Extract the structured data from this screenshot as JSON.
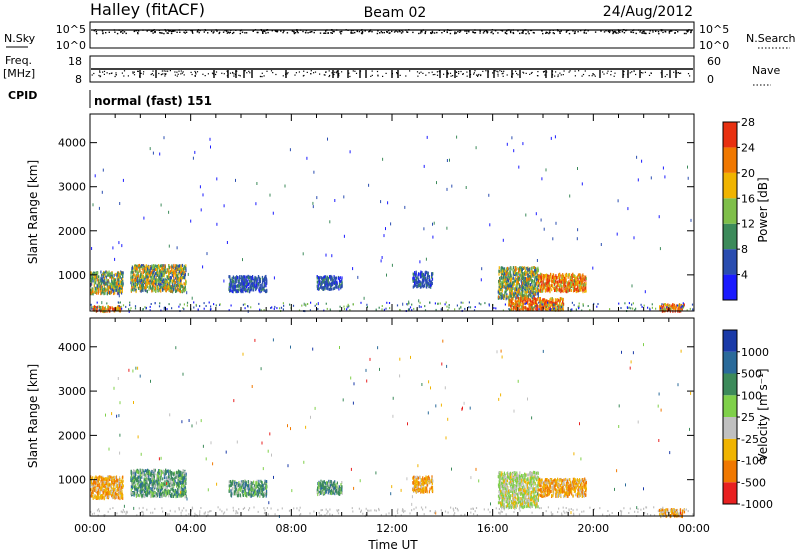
{
  "header": {
    "station": "Halley (fitACF)",
    "beam": "Beam 02",
    "date": "24/Aug/2012"
  },
  "top_panels": {
    "nsky": {
      "label": "N.Sky",
      "right_label": "N.Search",
      "tick_labels": [
        "10^5",
        "10^0"
      ],
      "right_tick_labels": [
        "10^5",
        "10^0"
      ]
    },
    "freq": {
      "label_line1": "Freq.",
      "label_line2": "[MHz]",
      "right_label": "Nave",
      "tick_labels": [
        "18",
        "8"
      ],
      "right_tick_labels": [
        "60",
        "0"
      ]
    },
    "cpid": {
      "label": "CPID",
      "text": "normal (fast) 151"
    }
  },
  "chart_data": [
    {
      "type": "heatmap",
      "title": "",
      "xlabel": "Time UT",
      "ylabel": "Slant Range [km]",
      "xlim": [
        0,
        24
      ],
      "ylim": [
        180,
        4650
      ],
      "x_tick_labels": [
        "00:00",
        "04:00",
        "08:00",
        "12:00",
        "16:00",
        "20:00",
        "00:00"
      ],
      "y_tick_labels": [
        "1000",
        "2000",
        "3000",
        "4000"
      ],
      "y_ticks": [
        1000,
        2000,
        3000,
        4000
      ],
      "colorbar": {
        "label": "Power [dB]",
        "tick_labels": [
          "4",
          "8",
          "12",
          "16",
          "20",
          "24",
          "28"
        ],
        "colors": [
          "#1a1aff",
          "#2a4db0",
          "#3c8a5a",
          "#7fbf4a",
          "#f0b400",
          "#f07800",
          "#e83010"
        ]
      },
      "regions": [
        {
          "t0": 0.0,
          "t1": 1.3,
          "r0": 600,
          "r1": 1100,
          "value": "moderate"
        },
        {
          "t0": 1.6,
          "t1": 3.8,
          "r0": 650,
          "r1": 1250,
          "value": "moderate"
        },
        {
          "t0": 5.5,
          "t1": 7.0,
          "r0": 650,
          "r1": 1000,
          "value": "low"
        },
        {
          "t0": 9.0,
          "t1": 10.0,
          "r0": 700,
          "r1": 1000,
          "value": "low"
        },
        {
          "t0": 12.8,
          "t1": 13.6,
          "r0": 750,
          "r1": 1100,
          "value": "low"
        },
        {
          "t0": 16.2,
          "t1": 17.8,
          "r0": 500,
          "r1": 1200,
          "value": "moderate"
        },
        {
          "t0": 17.8,
          "t1": 19.7,
          "r0": 650,
          "r1": 1050,
          "value": "high"
        },
        {
          "t0": 16.6,
          "t1": 18.8,
          "r0": 230,
          "r1": 500,
          "value": "high"
        },
        {
          "t0": 22.6,
          "t1": 23.6,
          "r0": 200,
          "r1": 360,
          "value": "high"
        },
        {
          "t0": 0.1,
          "t1": 1.2,
          "r0": 200,
          "r1": 320,
          "value": "high"
        }
      ]
    },
    {
      "type": "heatmap",
      "title": "",
      "xlabel": "Time UT",
      "ylabel": "Slant Range [km]",
      "xlim": [
        0,
        24
      ],
      "ylim": [
        180,
        4650
      ],
      "x_tick_labels": [
        "00:00",
        "04:00",
        "08:00",
        "12:00",
        "16:00",
        "20:00",
        "00:00"
      ],
      "y_tick_labels": [
        "1000",
        "2000",
        "3000",
        "4000"
      ],
      "y_ticks": [
        1000,
        2000,
        3000,
        4000
      ],
      "colorbar": {
        "label": "Velocity [m s⁻¹]",
        "tick_labels": [
          "1000",
          "500",
          "100",
          "25",
          "-25",
          "-100",
          "-500",
          "-1000"
        ],
        "colors": [
          "#1a3aa8",
          "#2a6a9a",
          "#3c8a5a",
          "#7fd04a",
          "#c0c0c0",
          "#f0b400",
          "#f07800",
          "#e82020"
        ]
      },
      "regions": [
        {
          "t0": 0.0,
          "t1": 1.3,
          "r0": 600,
          "r1": 1100,
          "value": "negative"
        },
        {
          "t0": 1.6,
          "t1": 3.8,
          "r0": 650,
          "r1": 1250,
          "value": "positive"
        },
        {
          "t0": 5.5,
          "t1": 7.0,
          "r0": 650,
          "r1": 1000,
          "value": "positive"
        },
        {
          "t0": 9.0,
          "t1": 10.0,
          "r0": 700,
          "r1": 1000,
          "value": "positive"
        },
        {
          "t0": 12.8,
          "t1": 13.6,
          "r0": 750,
          "r1": 1100,
          "value": "negative"
        },
        {
          "t0": 16.2,
          "t1": 17.8,
          "r0": 400,
          "r1": 1200,
          "value": "near-zero"
        },
        {
          "t0": 17.8,
          "t1": 19.7,
          "r0": 650,
          "r1": 1050,
          "value": "negative"
        },
        {
          "t0": 22.6,
          "t1": 23.6,
          "r0": 200,
          "r1": 360,
          "value": "negative"
        }
      ]
    }
  ]
}
